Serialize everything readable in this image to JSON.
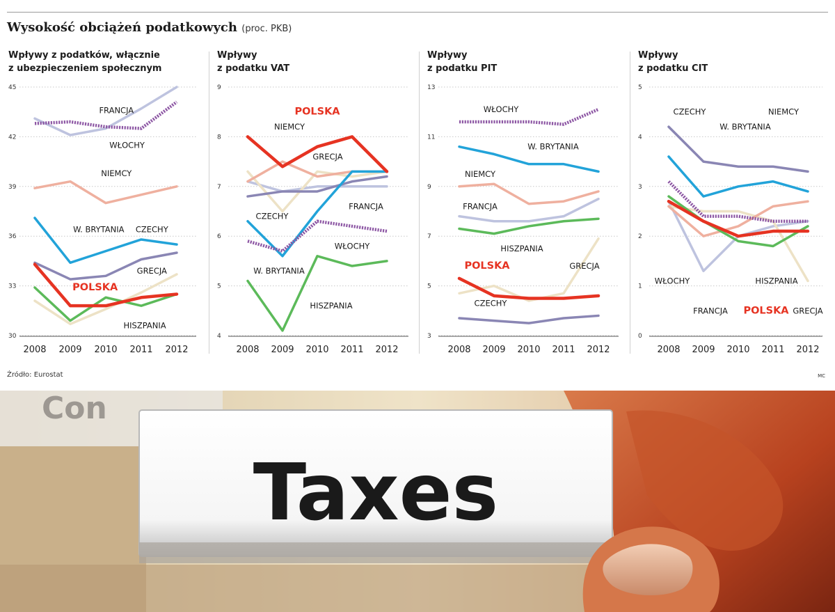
{
  "header": {
    "title": "Wysokość obciążeń podatkowych",
    "subtitle": "(proc. PKB)"
  },
  "colors": {
    "POLSKA": "#e63322",
    "FRANCJA": "#bec3df",
    "WŁOCHY": "#8d57a4",
    "NIEMCY": "#efb09f",
    "W. BRYTANIA": "#22a3d9",
    "CZECHY": "#8a86b4",
    "GRECJA": "#ede2c6",
    "HISZPANIA": "#5cba5a"
  },
  "chart_data": [
    {
      "type": "line",
      "title_lines": [
        "Wpływy z podatków, włącznie",
        "z ubezpieczeniem społecznym"
      ],
      "x": [
        "2008",
        "2009",
        "2010",
        "2011",
        "2012"
      ],
      "ylim": [
        30,
        45
      ],
      "yticks": [
        "30",
        "33",
        "36",
        "39",
        "42",
        "45"
      ],
      "series": [
        {
          "name": "FRANCJA",
          "values": [
            43.1,
            42.1,
            42.5,
            43.7,
            45.0
          ]
        },
        {
          "name": "WŁOCHY",
          "values": [
            42.8,
            42.9,
            42.6,
            42.5,
            44.1
          ]
        },
        {
          "name": "NIEMCY",
          "values": [
            38.9,
            39.3,
            38.0,
            38.5,
            39.0
          ]
        },
        {
          "name": "W. BRYTANIA",
          "values": [
            37.1,
            34.4,
            35.1,
            35.8,
            35.5
          ]
        },
        {
          "name": "CZECHY",
          "values": [
            34.4,
            33.4,
            33.6,
            34.6,
            35.0
          ]
        },
        {
          "name": "GRECJA",
          "values": [
            32.1,
            30.7,
            31.6,
            32.6,
            33.7
          ]
        },
        {
          "name": "HISZPANIA",
          "values": [
            32.9,
            30.9,
            32.3,
            31.8,
            32.5
          ]
        },
        {
          "name": "POLSKA",
          "values": [
            34.3,
            31.8,
            31.8,
            32.3,
            32.5
          ]
        }
      ],
      "labels": [
        {
          "text": "FRANCJA",
          "year": "2010.3",
          "value": 43.6
        },
        {
          "text": "WŁOCHY",
          "year": "2010.6",
          "value": 41.5
        },
        {
          "text": "NIEMCY",
          "year": "2010.3",
          "value": 39.8
        },
        {
          "text": "W. BRYTANIA",
          "year": "2009.8",
          "value": 36.4
        },
        {
          "text": "CZECHY",
          "year": "2011.3",
          "value": 36.4
        },
        {
          "text": "GRECJA",
          "year": "2011.3",
          "value": 33.9
        },
        {
          "text": "POLSKA",
          "year": "2009.7",
          "value": 32.9
        },
        {
          "text": "HISZPANIA",
          "year": "2011.1",
          "value": 30.6
        }
      ]
    },
    {
      "type": "line",
      "title_lines": [
        "Wpływy",
        "z podatku VAT"
      ],
      "x": [
        "2008",
        "2009",
        "2010",
        "2011",
        "2012"
      ],
      "ylim": [
        4,
        9
      ],
      "yticks": [
        "4",
        "5",
        "6",
        "7",
        "8",
        "9"
      ],
      "series": [
        {
          "name": "GRECJA",
          "values": [
            7.3,
            6.5,
            7.3,
            7.2,
            7.3
          ]
        },
        {
          "name": "FRANCJA",
          "values": [
            7.1,
            6.9,
            7.0,
            7.0,
            7.0
          ]
        },
        {
          "name": "NIEMCY",
          "values": [
            7.1,
            7.5,
            7.2,
            7.3,
            7.3
          ]
        },
        {
          "name": "CZECHY",
          "values": [
            6.8,
            6.9,
            6.9,
            7.1,
            7.2
          ]
        },
        {
          "name": "W. BRYTANIA",
          "values": [
            6.3,
            5.6,
            6.5,
            7.3,
            7.3
          ]
        },
        {
          "name": "WŁOCHY",
          "values": [
            5.9,
            5.7,
            6.3,
            6.2,
            6.1
          ]
        },
        {
          "name": "HISZPANIA",
          "values": [
            5.1,
            4.1,
            5.6,
            5.4,
            5.5
          ]
        },
        {
          "name": "POLSKA",
          "values": [
            8.0,
            7.4,
            7.8,
            8.0,
            7.3
          ]
        }
      ],
      "labels": [
        {
          "text": "POLSKA",
          "year": "2010.0",
          "value": 8.5
        },
        {
          "text": "NIEMCY",
          "year": "2009.2",
          "value": 8.2
        },
        {
          "text": "GRECJA",
          "year": "2010.3",
          "value": 7.6
        },
        {
          "text": "FRANCJA",
          "year": "2011.4",
          "value": 6.6
        },
        {
          "text": "CZECHY",
          "year": "2008.7",
          "value": 6.4
        },
        {
          "text": "WŁOCHY",
          "year": "2011.0",
          "value": 5.8
        },
        {
          "text": "W. BRYTANIA",
          "year": "2008.9",
          "value": 5.3
        },
        {
          "text": "HISZPANIA",
          "year": "2010.4",
          "value": 4.6
        }
      ]
    },
    {
      "type": "line",
      "title_lines": [
        "Wpływy",
        "z podatku PIT"
      ],
      "x": [
        "2008",
        "2009",
        "2010",
        "2011",
        "2012"
      ],
      "ylim": [
        3,
        13
      ],
      "yticks": [
        "3",
        "5",
        "7",
        "9",
        "11",
        "13"
      ],
      "series": [
        {
          "name": "WŁOCHY",
          "values": [
            11.6,
            11.6,
            11.6,
            11.5,
            12.1
          ]
        },
        {
          "name": "W. BRYTANIA",
          "values": [
            10.6,
            10.3,
            9.9,
            9.9,
            9.6
          ]
        },
        {
          "name": "NIEMCY",
          "values": [
            9.0,
            9.1,
            8.3,
            8.4,
            8.8
          ]
        },
        {
          "name": "FRANCJA",
          "values": [
            7.8,
            7.6,
            7.6,
            7.8,
            8.5
          ]
        },
        {
          "name": "HISZPANIA",
          "values": [
            7.3,
            7.1,
            7.4,
            7.6,
            7.7
          ]
        },
        {
          "name": "GRECJA",
          "values": [
            4.7,
            5.0,
            4.4,
            4.7,
            6.9
          ]
        },
        {
          "name": "CZECHY",
          "values": [
            3.7,
            3.6,
            3.5,
            3.7,
            3.8
          ]
        },
        {
          "name": "POLSKA",
          "values": [
            5.3,
            4.6,
            4.5,
            4.5,
            4.6
          ]
        }
      ],
      "labels": [
        {
          "text": "WŁOCHY",
          "year": "2009.2",
          "value": 12.1
        },
        {
          "text": "W. BRYTANIA",
          "year": "2010.7",
          "value": 10.6
        },
        {
          "text": "NIEMCY",
          "year": "2008.6",
          "value": 9.5
        },
        {
          "text": "FRANCJA",
          "year": "2008.6",
          "value": 8.2
        },
        {
          "text": "HISZPANIA",
          "year": "2009.8",
          "value": 6.5
        },
        {
          "text": "POLSKA",
          "year": "2008.8",
          "value": 5.8
        },
        {
          "text": "GRECJA",
          "year": "2011.6",
          "value": 5.8
        },
        {
          "text": "CZECHY",
          "year": "2008.9",
          "value": 4.3
        }
      ]
    },
    {
      "type": "line",
      "title_lines": [
        "Wpływy",
        "z podatku CIT"
      ],
      "x": [
        "2008",
        "2009",
        "2010",
        "2011",
        "2012"
      ],
      "ylim": [
        0,
        5
      ],
      "yticks": [
        "0",
        "1",
        "2",
        "3",
        "4",
        "5"
      ],
      "series": [
        {
          "name": "CZECHY",
          "values": [
            4.2,
            3.5,
            3.4,
            3.4,
            3.3
          ]
        },
        {
          "name": "W. BRYTANIA",
          "values": [
            3.6,
            2.8,
            3.0,
            3.1,
            2.9
          ]
        },
        {
          "name": "NIEMCY",
          "values": [
            2.6,
            2.0,
            2.2,
            2.6,
            2.7
          ]
        },
        {
          "name": "GRECJA",
          "values": [
            2.6,
            2.5,
            2.5,
            2.3,
            1.1
          ]
        },
        {
          "name": "FRANCJA",
          "values": [
            2.7,
            1.3,
            2.0,
            2.2,
            2.3
          ]
        },
        {
          "name": "WŁOCHY",
          "values": [
            3.1,
            2.4,
            2.4,
            2.3,
            2.3
          ]
        },
        {
          "name": "HISZPANIA",
          "values": [
            2.8,
            2.3,
            1.9,
            1.8,
            2.2
          ]
        },
        {
          "name": "POLSKA",
          "values": [
            2.7,
            2.3,
            2.0,
            2.1,
            2.1
          ]
        }
      ],
      "labels": [
        {
          "text": "CZECHY",
          "year": "2008.6",
          "value": 4.5
        },
        {
          "text": "NIEMCY",
          "year": "2011.3",
          "value": 4.5
        },
        {
          "text": "W. BRYTANIA",
          "year": "2010.2",
          "value": 4.2
        },
        {
          "text": "WŁOCHY",
          "year": "2008.1",
          "value": 1.1
        },
        {
          "text": "HISZPANIA",
          "year": "2011.1",
          "value": 1.1
        },
        {
          "text": "FRANCJA",
          "year": "2009.2",
          "value": 0.5
        },
        {
          "text": "POLSKA",
          "year": "2010.8",
          "value": 0.5
        },
        {
          "text": "GRECJA",
          "year": "2012.0",
          "value": 0.5
        }
      ]
    }
  ],
  "footer": {
    "source": "Źródło: Eurostat",
    "author": "MC"
  },
  "photo": {
    "tab_text": "Taxes",
    "back_folder_text": "Con"
  }
}
